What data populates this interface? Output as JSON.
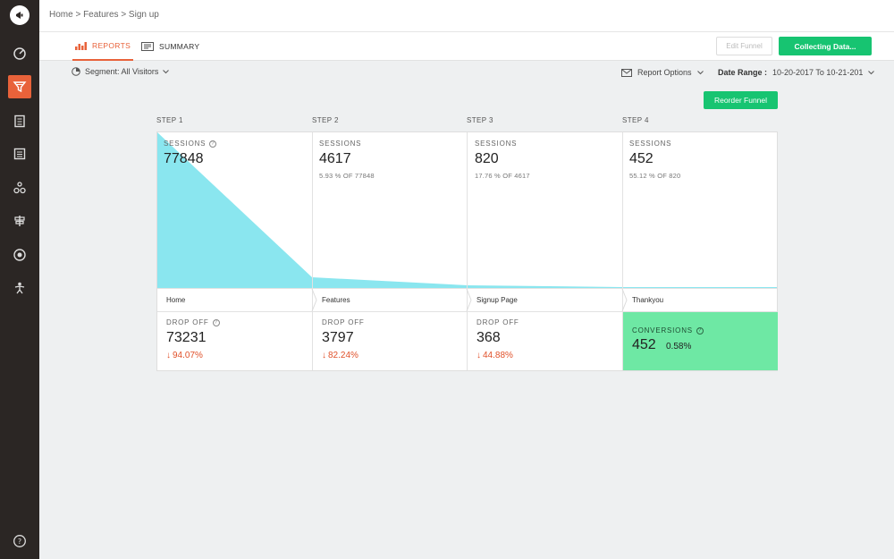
{
  "breadcrumb": "Home > Features > Sign up",
  "tabs": [
    {
      "label": "REPORTS"
    },
    {
      "label": "SUMMARY"
    }
  ],
  "buttons": {
    "edit_funnel": "Edit Funnel",
    "collecting": "Collecting Data...",
    "reorder": "Reorder Funnel"
  },
  "filters": {
    "segment": "Segment: All Visitors",
    "report_options": "Report Options",
    "date_label": "Date Range :",
    "date_value": "10-20-2017 To 10-21-201"
  },
  "steps": [
    {
      "label": "STEP 1",
      "sessions_title": "SESSIONS",
      "sessions": "77848",
      "sub": "",
      "page": "Home",
      "drop_title": "DROP OFF",
      "drop": "73231",
      "drop_pct": "94.07%"
    },
    {
      "label": "STEP 2",
      "sessions_title": "SESSIONS",
      "sessions": "4617",
      "sub": "5.93 % OF 77848",
      "page": "Features",
      "drop_title": "DROP OFF",
      "drop": "3797",
      "drop_pct": "82.24%"
    },
    {
      "label": "STEP 3",
      "sessions_title": "SESSIONS",
      "sessions": "820",
      "sub": "17.76 % OF 4617",
      "page": "Signup Page",
      "drop_title": "DROP OFF",
      "drop": "368",
      "drop_pct": "44.88%"
    },
    {
      "label": "STEP 4",
      "sessions_title": "SESSIONS",
      "sessions": "452",
      "sub": "55.12 % OF 820",
      "page": "Thankyou"
    }
  ],
  "conversions": {
    "title": "CONVERSIONS",
    "value": "452",
    "pct": "0.58%"
  },
  "colors": {
    "accent": "#e8623a",
    "green": "#17c471",
    "funnel": "#8ae6ef",
    "conversion": "#6ee8a4",
    "drop": "#e0512a"
  }
}
